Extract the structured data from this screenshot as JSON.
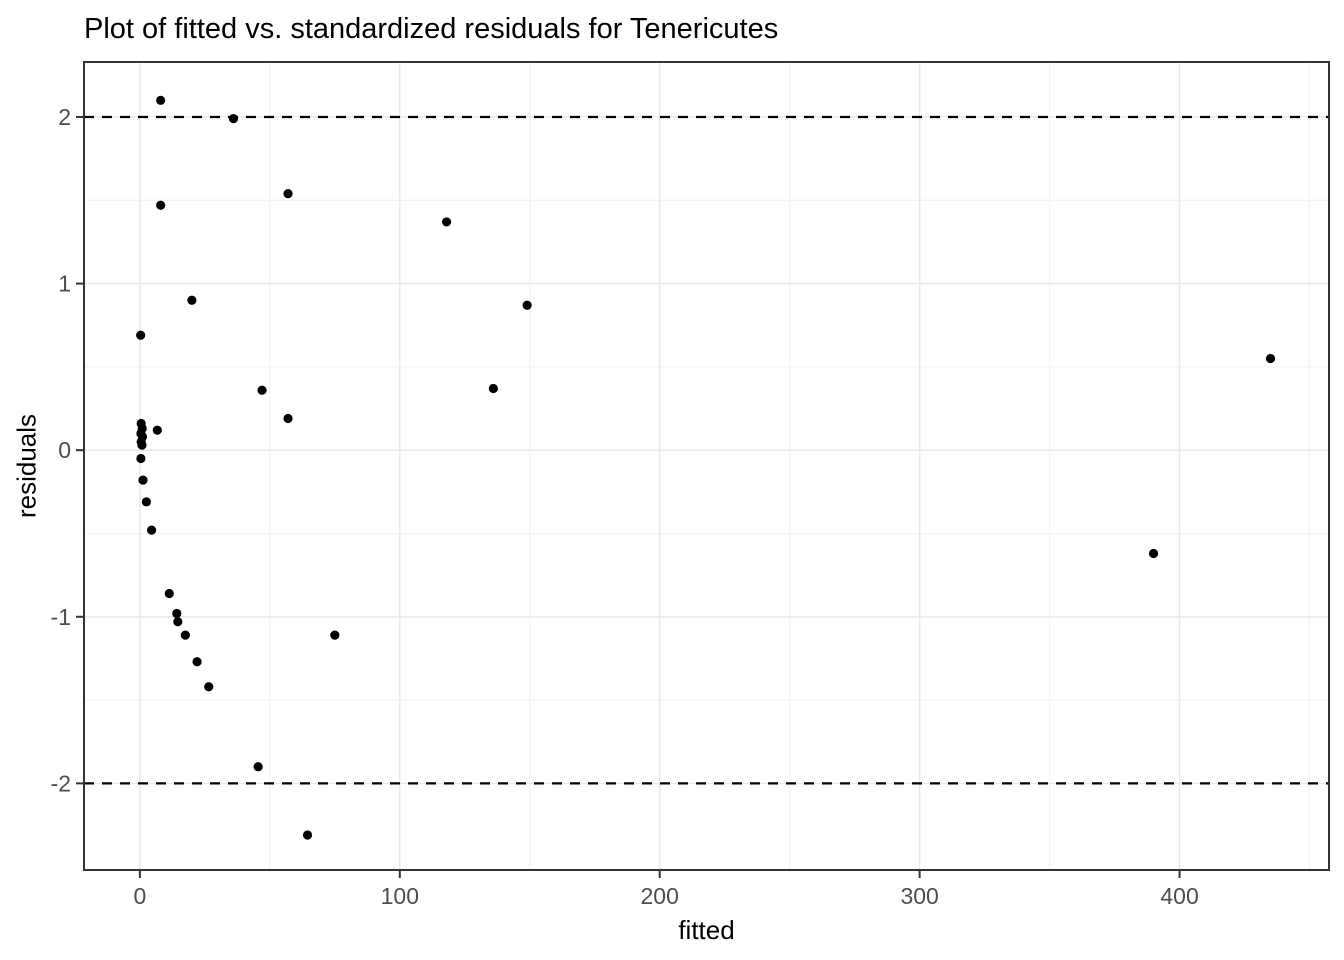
{
  "title": "Plot of fitted vs. standardized residuals for Tenericutes",
  "colors": {
    "background": "#ffffff",
    "panel_background": "#ffffff",
    "grid_major": "#e7e7e7",
    "grid_minor": "#f3f3f3",
    "panel_border": "#333333",
    "tick_mark": "#333333",
    "tick_label": "#4d4d4d",
    "point": "#000000",
    "reference_line": "#000000",
    "title_color": "#000000"
  },
  "chart_data": {
    "type": "scatter",
    "title": "Plot of fitted vs. standardized residuals for Tenericutes",
    "xlabel": "fitted",
    "ylabel": "residuals",
    "xlim": [
      -21.5,
      457.5
    ],
    "ylim": [
      -2.52,
      2.33
    ],
    "grid": true,
    "legend": false,
    "x_ticks": [
      {
        "value": 0,
        "label": "0"
      },
      {
        "value": 100,
        "label": "100"
      },
      {
        "value": 200,
        "label": "200"
      },
      {
        "value": 300,
        "label": "300"
      },
      {
        "value": 400,
        "label": "400"
      }
    ],
    "y_ticks": [
      {
        "value": -2,
        "label": "-2"
      },
      {
        "value": -1,
        "label": "-1"
      },
      {
        "value": 0,
        "label": "0"
      },
      {
        "value": 1,
        "label": "1"
      },
      {
        "value": 2,
        "label": "2"
      }
    ],
    "x_minor_ticks": [
      50,
      150,
      250,
      350,
      450
    ],
    "y_minor_ticks": [
      -1.5,
      -0.5,
      0.5,
      1.5
    ],
    "reference_lines": [
      {
        "y": 2,
        "style": "dashed"
      },
      {
        "y": -2,
        "style": "dashed"
      }
    ],
    "points": [
      [
        8,
        2.1
      ],
      [
        36,
        1.99
      ],
      [
        57,
        1.54
      ],
      [
        8,
        1.47
      ],
      [
        118,
        1.37
      ],
      [
        20,
        0.9
      ],
      [
        149,
        0.87
      ],
      [
        0.3,
        0.69
      ],
      [
        435,
        0.55
      ],
      [
        136,
        0.37
      ],
      [
        47,
        0.36
      ],
      [
        57,
        0.19
      ],
      [
        6.7,
        0.12
      ],
      [
        0.5,
        0.16
      ],
      [
        0.9,
        0.13
      ],
      [
        0.4,
        0.1
      ],
      [
        1.0,
        0.08
      ],
      [
        0.5,
        0.05
      ],
      [
        0.8,
        0.03
      ],
      [
        0.4,
        -0.05
      ],
      [
        1.2,
        -0.18
      ],
      [
        2.5,
        -0.31
      ],
      [
        4.5,
        -0.48
      ],
      [
        390,
        -0.62
      ],
      [
        11.3,
        -0.86
      ],
      [
        14.2,
        -0.98
      ],
      [
        14.6,
        -1.03
      ],
      [
        17.5,
        -1.11
      ],
      [
        75,
        -1.11
      ],
      [
        22,
        -1.27
      ],
      [
        26.5,
        -1.42
      ],
      [
        45.5,
        -1.9
      ],
      [
        64.5,
        -2.31
      ]
    ]
  }
}
